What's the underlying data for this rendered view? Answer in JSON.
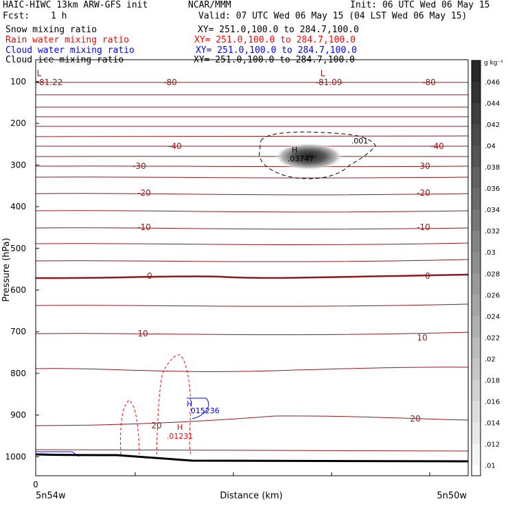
{
  "header": {
    "model": "HAIC-HIWC 13km ARW-GFS init",
    "org": "NCAR/MMM",
    "init": "Init: 06 UTC Wed 06 May 15",
    "fcst_label": "Fcst:",
    "fcst_value": "1 h",
    "valid": "Valid: 07 UTC Wed 06 May 15 (04 LST Wed 06 May 15)"
  },
  "fields": [
    {
      "name": "Snow mixing ratio",
      "xy": "XY= 251.0,100.0 to 284.7,100.0",
      "color": "#000000"
    },
    {
      "name": "Rain water mixing ratio",
      "xy": "XY= 251.0,100.0 to 284.7,100.0",
      "color": "#ff0000"
    },
    {
      "name": "Cloud water mixing ratio",
      "xy": "XY= 251.0,100.0 to 284.7,100.0",
      "color": "#0000ff"
    },
    {
      "name": "Cloud ice mixing ratio",
      "xy": "XY= 251.0,100.0 to 284.7,100.0",
      "color": "#000000"
    }
  ],
  "chart_data": {
    "type": "cross-section",
    "ylabel": "Pressure (hPa)",
    "xlabel": "Distance (km)",
    "y_ticks": [
      "100",
      "200",
      "300",
      "400",
      "500",
      "600",
      "700",
      "800",
      "900",
      "1000"
    ],
    "x_tick_zero": "0",
    "x_left_label": "5n54w",
    "x_right_label": "5n50w",
    "colorbar": {
      "unit": "g kg⁻¹",
      "ticks": [
        ".046",
        ".044",
        ".042",
        ".04",
        ".038",
        ".036",
        ".034",
        ".032",
        ".03",
        ".028",
        ".026",
        ".024",
        ".022",
        ".02",
        ".018",
        ".016",
        ".014",
        ".012",
        ".01"
      ]
    },
    "temperature_labels": [
      "-81.22",
      "-80",
      "-81.09",
      "-80",
      "-40",
      "-40",
      "-30",
      "-30",
      "-20",
      "-20",
      "-10",
      "-10",
      "0",
      "0",
      "10",
      "10",
      "20",
      "20"
    ],
    "extrema": [
      {
        "type": "L",
        "value": "-81.22",
        "color": "#8b1a1a"
      },
      {
        "type": "L",
        "value": "-81.09",
        "color": "#8b1a1a"
      },
      {
        "type": "H",
        "value": ".03747",
        "color": "#000000",
        "field": "Snow mixing ratio"
      },
      {
        "type": "H",
        "value": ".015236",
        "color": "#0000ff",
        "field": "Cloud water mixing ratio"
      },
      {
        "type": "H",
        "value": ".01231",
        "color": "#ff0000",
        "field": "Rain water mixing ratio"
      }
    ],
    "ice_contour_label": ".001",
    "grid": false
  }
}
